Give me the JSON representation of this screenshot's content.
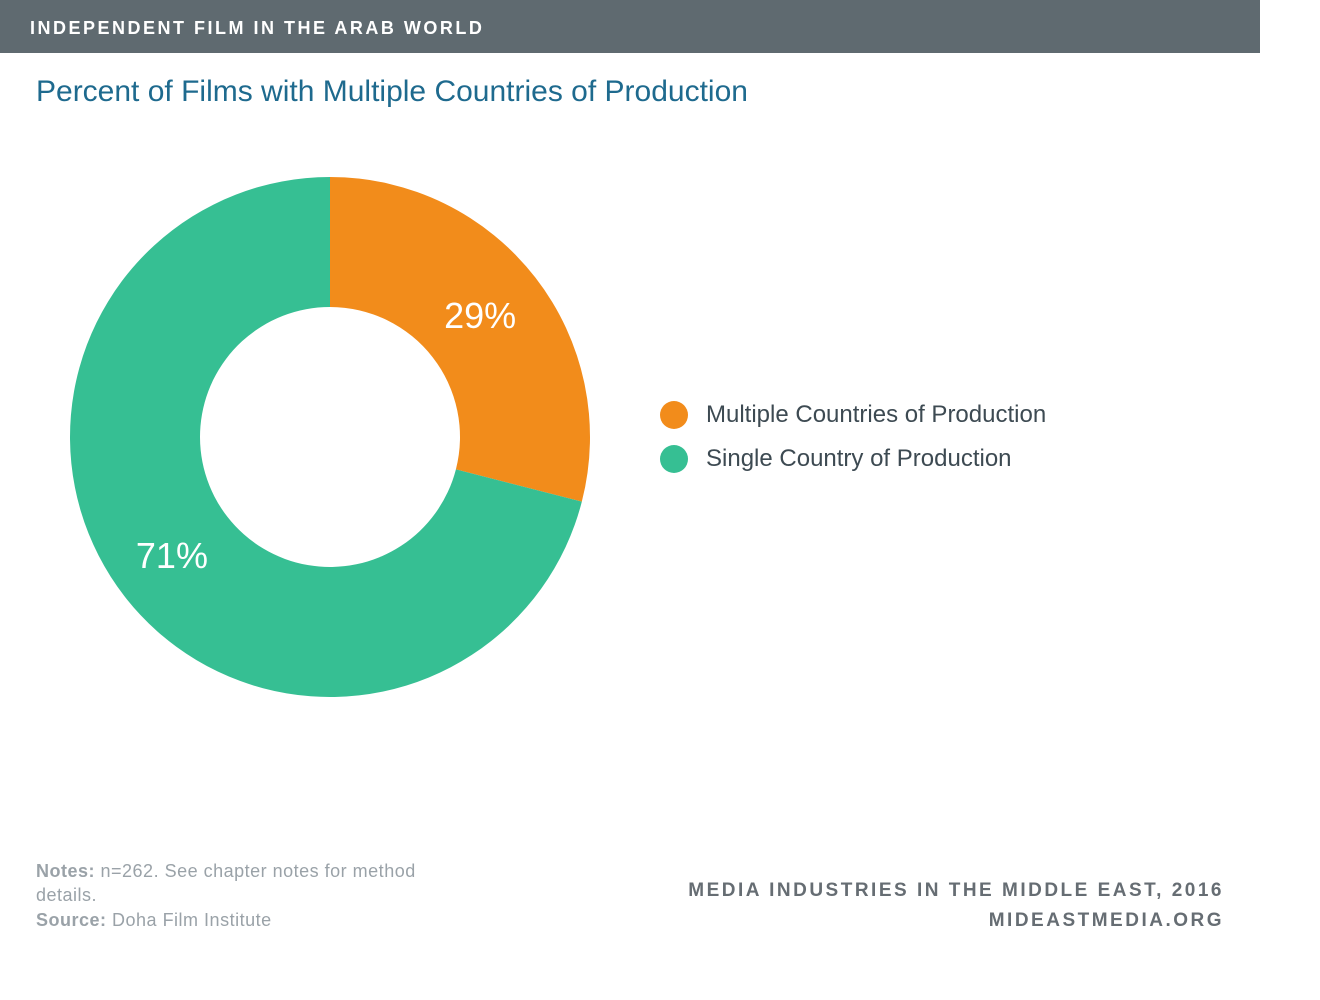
{
  "header": {
    "title": "INDEPENDENT FILM IN THE ARAB WORLD",
    "bg_color": "#5f6a70",
    "text_color": "#ffffff"
  },
  "chart": {
    "type": "donut",
    "title": "Percent of Films with Multiple Countries of Production",
    "title_color": "#1e6a8e",
    "title_fontsize": 30,
    "inner_radius_ratio": 0.5,
    "slices": [
      {
        "label": "Multiple Countries of Production",
        "value": 29,
        "display": "29%",
        "color": "#f28c1b"
      },
      {
        "label": "Single Country of Production",
        "value": 71,
        "display": "71%",
        "color": "#36bf93"
      }
    ],
    "label_color": "#ffffff",
    "label_fontsize": 36,
    "background_color": "#ffffff"
  },
  "legend": {
    "text_color": "#3d4a52",
    "fontsize": 24
  },
  "footer": {
    "notes_label": "Notes:",
    "notes_text": " n=262. See chapter notes for method details.",
    "source_label": "Source:",
    "source_text": " Doha Film Institute",
    "right_line1": "MEDIA INDUSTRIES IN THE MIDDLE EAST, 2016",
    "right_line2": "MIDEASTMEDIA.ORG",
    "left_color": "#9aa2a8",
    "right_color": "#666d73"
  }
}
